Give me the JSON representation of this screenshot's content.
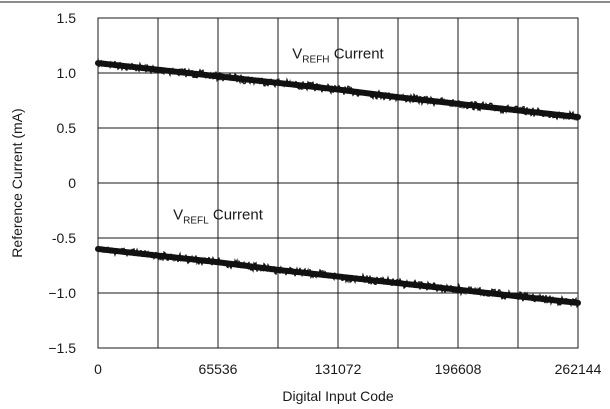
{
  "chart_data": {
    "type": "line",
    "title": "",
    "xlabel": "Digital Input Code",
    "ylabel": "Reference Current (mA)",
    "xlim": [
      0,
      262144
    ],
    "ylim": [
      -1.5,
      1.5
    ],
    "x_ticks": [
      0,
      65536,
      131072,
      196608,
      262144
    ],
    "x_tick_labels": [
      "0",
      "65536",
      "131072",
      "196608",
      "262144"
    ],
    "y_ticks": [
      -1.5,
      -1.0,
      -0.5,
      0,
      0.5,
      1.0,
      1.5
    ],
    "y_tick_labels": [
      "−1.5",
      "−1.0",
      "-0.5",
      "0",
      "0.5",
      "1.0",
      "1.5"
    ],
    "x_gridlines": [
      0,
      32768,
      65536,
      98304,
      131072,
      163840,
      196608,
      229376,
      262144
    ],
    "grid": true,
    "series": [
      {
        "x": [
          0,
          32768,
          65536,
          98304,
          131072,
          163840,
          196608,
          229376,
          262144
        ],
        "values": [
          1.09,
          1.03,
          0.97,
          0.91,
          0.85,
          0.78,
          0.72,
          0.66,
          0.6
        ]
      },
      {
        "x": [
          0,
          32768,
          65536,
          98304,
          131072,
          163840,
          196608,
          229376,
          262144
        ],
        "values": [
          -0.6,
          -0.66,
          -0.72,
          -0.79,
          -0.85,
          -0.91,
          -0.97,
          -1.03,
          -1.09
        ]
      }
    ],
    "annotations": [
      {
        "main": "V",
        "sub": "REFH",
        "rest": " Current",
        "at": [
          131072,
          1.13
        ]
      },
      {
        "main": "V",
        "sub": "REFL",
        "rest": " Current",
        "at": [
          65536,
          -0.33
        ]
      }
    ]
  }
}
